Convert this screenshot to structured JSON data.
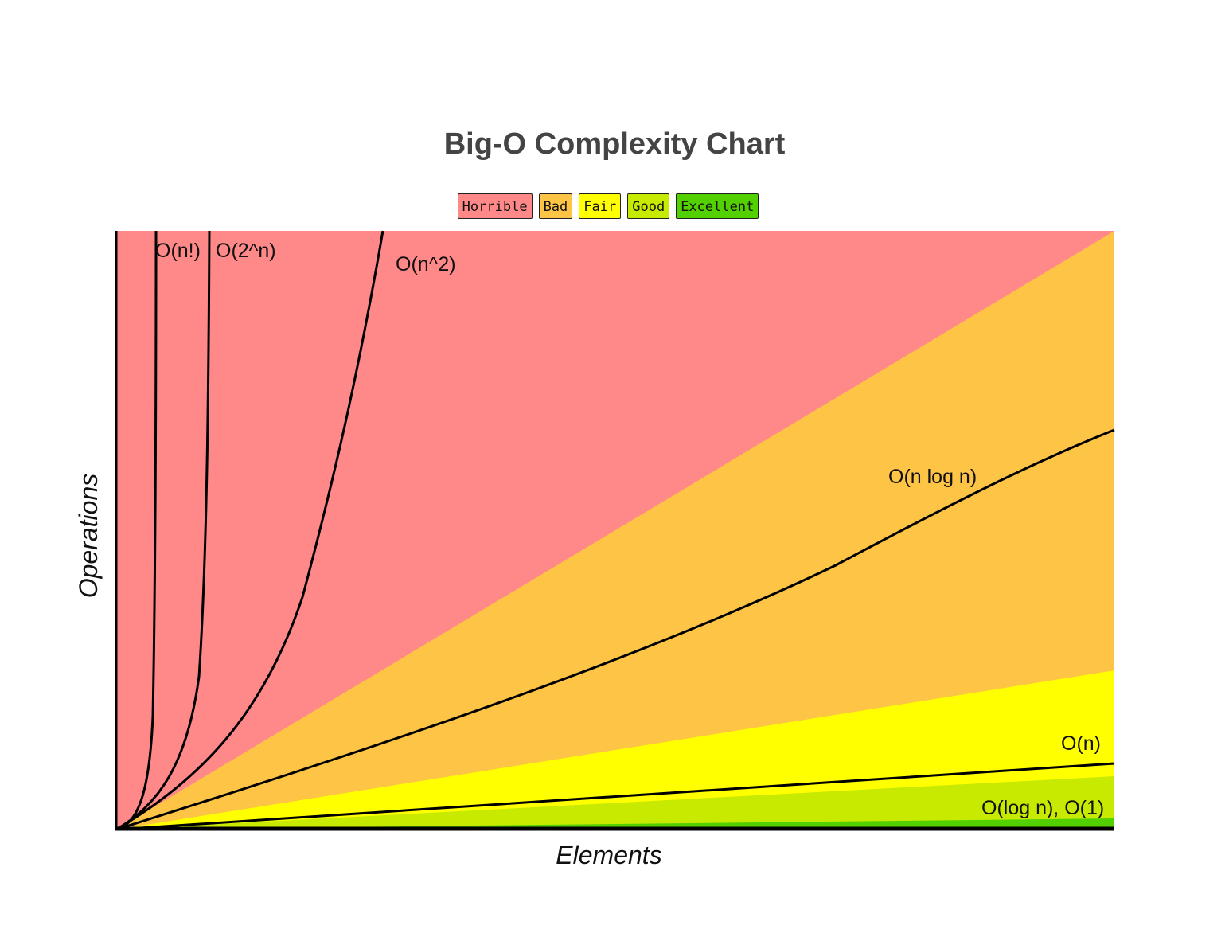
{
  "chart_data": {
    "type": "area",
    "title": "Big-O Complexity Chart",
    "xlabel": "Elements",
    "ylabel": "Operations",
    "legend": {
      "placement": "top-center",
      "items": [
        {
          "label": "Horrible",
          "color": "#ff8989"
        },
        {
          "label": "Bad",
          "color": "#fdc446"
        },
        {
          "label": "Fair",
          "color": "#ffff00"
        },
        {
          "label": "Good",
          "color": "#c8ea00"
        },
        {
          "label": "Excellent",
          "color": "#53d000"
        }
      ]
    },
    "regions": [
      {
        "name": "Horrible",
        "color": "#ff8989"
      },
      {
        "name": "Bad",
        "color": "#fdc446"
      },
      {
        "name": "Fair",
        "color": "#ffff00"
      },
      {
        "name": "Good",
        "color": "#c8ea00"
      },
      {
        "name": "Excellent",
        "color": "#53d000"
      }
    ],
    "curves": [
      {
        "label": "O(n!)"
      },
      {
        "label": "O(2^n)"
      },
      {
        "label": "O(n^2)"
      },
      {
        "label": "O(n log n)"
      },
      {
        "label": "O(n)"
      },
      {
        "label": "O(log n), O(1)"
      }
    ],
    "grid": false
  }
}
